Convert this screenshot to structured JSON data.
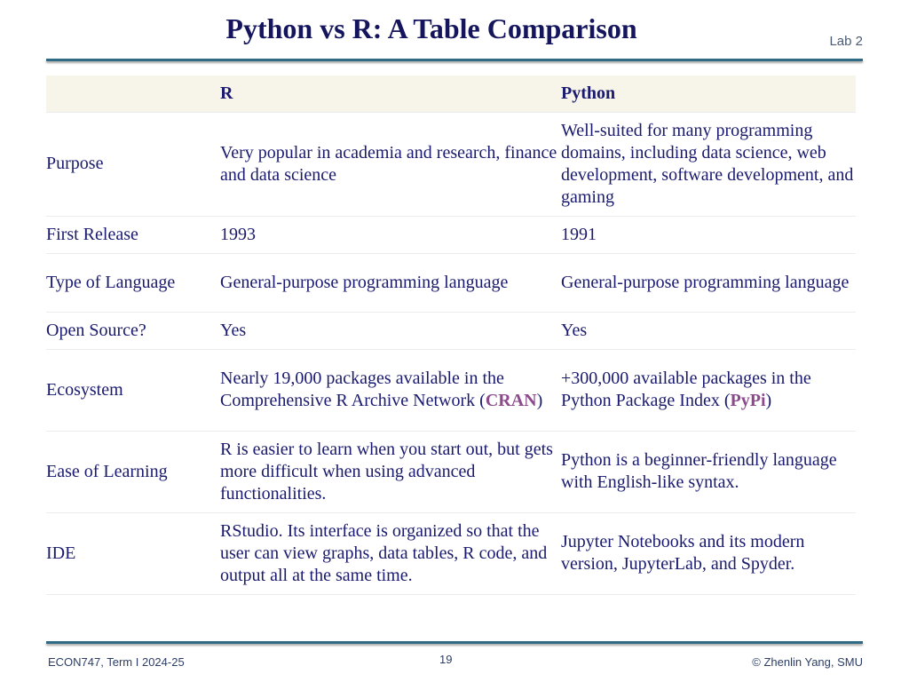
{
  "header": {
    "title": "Python vs R: A Table Comparison",
    "lab": "Lab 2"
  },
  "table": {
    "columns": [
      "",
      "R",
      "Python"
    ],
    "rows": [
      {
        "label": "Purpose",
        "r": "Very popular in academia and research, finance and data science",
        "python": "Well-suited for many programming domains, including data science, web development, software development, and gaming"
      },
      {
        "label": "First Release",
        "r": "1993",
        "python": "1991"
      },
      {
        "label": "Type of Language",
        "r": "General-purpose programming language",
        "python": "General-purpose programming language"
      },
      {
        "label": "Open Source?",
        "r": "Yes",
        "python": "Yes"
      },
      {
        "label": "Ecosystem",
        "r_pre": "Nearly 19,000 packages available in the Comprehensive R Archive Network (",
        "r_link": "CRAN",
        "r_post": ")",
        "python_pre": "+300,000 available packages in the Python Package Index (",
        "python_link": "PyPi",
        "python_post": ")"
      },
      {
        "label": "Ease of Learning",
        "r": "R is easier to learn when you start out, but gets more difficult when using advanced functionalities.",
        "python": "Python is a beginner-friendly language with English-like syntax."
      },
      {
        "label": "IDE",
        "r": "RStudio. Its interface is organized so that the user can view graphs, data tables, R code, and output all at the same time.",
        "python": "Jupyter Notebooks and its modern version, JupyterLab, and Spyder."
      }
    ]
  },
  "footer": {
    "left": "ECON747, Term I  2024-25",
    "page": "19",
    "right": "© Zhenlin Yang, SMU"
  },
  "colors": {
    "title": "#15155e",
    "text": "#1a1a6e",
    "link": "#8c4a8c",
    "rule": "#2f6b85",
    "header_bg": "#f7f4ea"
  }
}
